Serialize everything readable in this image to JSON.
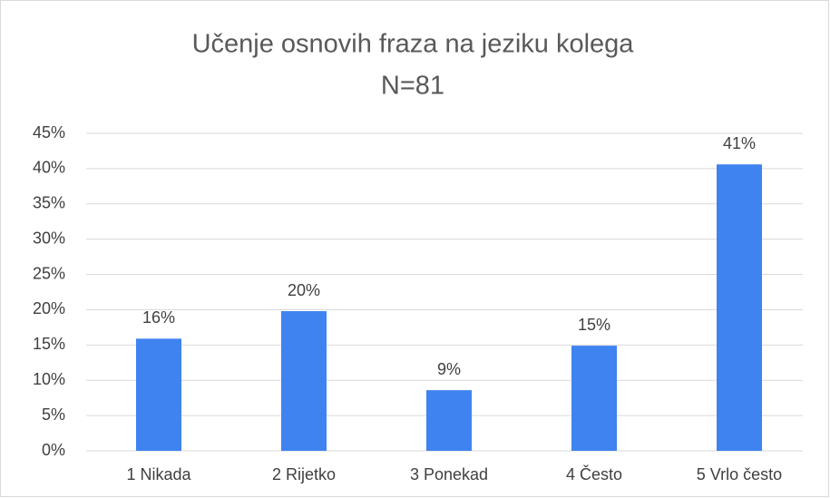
{
  "chart_data": {
    "type": "bar",
    "title": "Učenje osnovih fraza na jeziku kolega",
    "subtitle": "N=81",
    "categories": [
      "1 Nikada",
      "2 Rijetko",
      "3 Ponekad",
      "4 Često",
      "5 Vrlo često"
    ],
    "values": [
      15.9,
      19.8,
      8.6,
      14.9,
      40.6
    ],
    "value_labels": [
      "16%",
      "20%",
      "9%",
      "15%",
      "41%"
    ],
    "color": "#3f83f0",
    "ylim": [
      0,
      45
    ],
    "yticks": [
      {
        "value": 0,
        "label": "0%"
      },
      {
        "value": 5,
        "label": "5%"
      },
      {
        "value": 10,
        "label": "10%"
      },
      {
        "value": 15,
        "label": "15%"
      },
      {
        "value": 20,
        "label": "20%"
      },
      {
        "value": 25,
        "label": "25%"
      },
      {
        "value": 30,
        "label": "30%"
      },
      {
        "value": 35,
        "label": "35%"
      },
      {
        "value": 40,
        "label": "40%"
      },
      {
        "value": 45,
        "label": "45%"
      }
    ],
    "grid": true
  }
}
